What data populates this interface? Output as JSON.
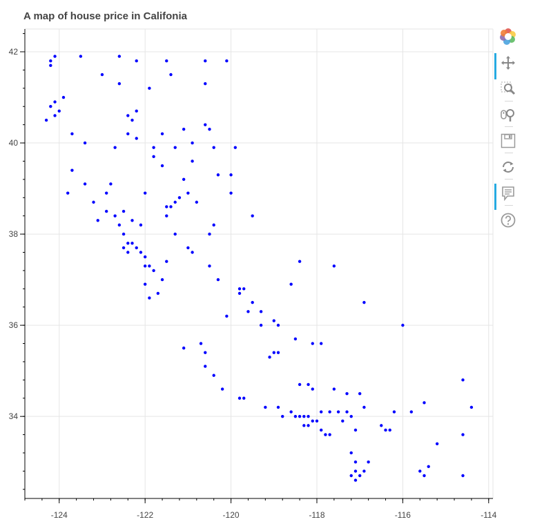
{
  "chart_data": {
    "type": "scatter",
    "title": "A map of house price in Califonia",
    "xlabel": "",
    "ylabel": "",
    "xlim": [
      -124.8,
      -113.9
    ],
    "ylim": [
      32.2,
      42.5
    ],
    "x_ticks": [
      -124,
      -122,
      -120,
      -118,
      -116,
      -114
    ],
    "x_tick_labels": [
      "-124",
      "-122",
      "-120",
      "-118",
      "-116",
      "-114"
    ],
    "y_ticks": [
      34,
      36,
      38,
      40,
      42
    ],
    "y_tick_labels": [
      "34",
      "36",
      "38",
      "40",
      "42"
    ],
    "grid": true,
    "legend": "none",
    "marker_color": "#0000ff",
    "series": [
      {
        "values_xy": [
          [
            -124.2,
            41.8
          ],
          [
            -124.1,
            41.9
          ],
          [
            -124.2,
            41.7
          ],
          [
            -123.5,
            41.9
          ],
          [
            -122.6,
            41.9
          ],
          [
            -122.2,
            41.8
          ],
          [
            -121.5,
            41.8
          ],
          [
            -120.6,
            41.8
          ],
          [
            -120.1,
            41.8
          ],
          [
            -124.2,
            40.8
          ],
          [
            -124.1,
            40.9
          ],
          [
            -124.1,
            40.6
          ],
          [
            -124.0,
            40.7
          ],
          [
            -123.9,
            41.0
          ],
          [
            -124.3,
            40.5
          ],
          [
            -123.7,
            40.2
          ],
          [
            -123.4,
            40.0
          ],
          [
            -122.4,
            40.6
          ],
          [
            -122.3,
            40.5
          ],
          [
            -122.4,
            40.2
          ],
          [
            -122.2,
            40.1
          ],
          [
            -121.8,
            39.9
          ],
          [
            -121.6,
            40.2
          ],
          [
            -121.1,
            40.3
          ],
          [
            -120.9,
            40.0
          ],
          [
            -120.6,
            40.4
          ],
          [
            -120.4,
            39.9
          ],
          [
            -120.3,
            39.3
          ],
          [
            -120.0,
            39.3
          ],
          [
            -120.0,
            38.9
          ],
          [
            -123.7,
            39.4
          ],
          [
            -123.8,
            38.9
          ],
          [
            -123.4,
            39.1
          ],
          [
            -122.8,
            39.1
          ],
          [
            -122.5,
            38.5
          ],
          [
            -122.7,
            38.4
          ],
          [
            -122.9,
            38.5
          ],
          [
            -122.3,
            38.3
          ],
          [
            -122.1,
            38.2
          ],
          [
            -122.4,
            37.8
          ],
          [
            -122.3,
            37.8
          ],
          [
            -122.2,
            37.7
          ],
          [
            -122.1,
            37.6
          ],
          [
            -122.0,
            37.5
          ],
          [
            -122.4,
            37.6
          ],
          [
            -122.5,
            37.7
          ],
          [
            -122.0,
            37.3
          ],
          [
            -121.9,
            37.3
          ],
          [
            -121.8,
            37.2
          ],
          [
            -122.0,
            36.9
          ],
          [
            -121.9,
            36.6
          ],
          [
            -121.7,
            36.7
          ],
          [
            -121.5,
            38.6
          ],
          [
            -121.4,
            38.6
          ],
          [
            -121.3,
            38.7
          ],
          [
            -121.5,
            38.4
          ],
          [
            -121.2,
            38.8
          ],
          [
            -121.0,
            38.9
          ],
          [
            -121.3,
            38.0
          ],
          [
            -121.0,
            37.7
          ],
          [
            -120.9,
            37.6
          ],
          [
            -120.5,
            37.3
          ],
          [
            -120.3,
            37.0
          ],
          [
            -119.8,
            36.8
          ],
          [
            -119.7,
            36.8
          ],
          [
            -119.8,
            36.7
          ],
          [
            -119.5,
            36.5
          ],
          [
            -119.3,
            36.3
          ],
          [
            -119.0,
            36.1
          ],
          [
            -119.3,
            36.0
          ],
          [
            -119.0,
            35.4
          ],
          [
            -119.1,
            35.3
          ],
          [
            -118.9,
            35.4
          ],
          [
            -120.6,
            35.4
          ],
          [
            -120.6,
            35.1
          ],
          [
            -120.4,
            34.9
          ],
          [
            -120.2,
            34.6
          ],
          [
            -119.7,
            34.4
          ],
          [
            -119.8,
            34.4
          ],
          [
            -119.2,
            34.2
          ],
          [
            -118.9,
            34.2
          ],
          [
            -118.8,
            34.0
          ],
          [
            -118.6,
            34.1
          ],
          [
            -118.5,
            34.0
          ],
          [
            -118.4,
            34.0
          ],
          [
            -118.3,
            34.0
          ],
          [
            -118.2,
            34.0
          ],
          [
            -118.1,
            33.9
          ],
          [
            -118.0,
            33.9
          ],
          [
            -118.2,
            33.8
          ],
          [
            -118.3,
            33.8
          ],
          [
            -117.9,
            33.7
          ],
          [
            -117.8,
            33.6
          ],
          [
            -117.7,
            33.6
          ],
          [
            -117.9,
            34.1
          ],
          [
            -117.7,
            34.1
          ],
          [
            -117.5,
            34.1
          ],
          [
            -117.3,
            34.1
          ],
          [
            -117.2,
            34.0
          ],
          [
            -117.4,
            33.9
          ],
          [
            -117.1,
            33.7
          ],
          [
            -117.2,
            33.2
          ],
          [
            -117.1,
            33.0
          ],
          [
            -117.1,
            32.8
          ],
          [
            -117.0,
            32.7
          ],
          [
            -117.1,
            32.6
          ],
          [
            -117.2,
            32.7
          ],
          [
            -116.9,
            32.8
          ],
          [
            -116.8,
            33.0
          ],
          [
            -116.5,
            33.8
          ],
          [
            -116.4,
            33.7
          ],
          [
            -116.3,
            33.7
          ],
          [
            -116.2,
            34.1
          ],
          [
            -117.0,
            34.5
          ],
          [
            -117.3,
            34.5
          ],
          [
            -117.6,
            34.6
          ],
          [
            -118.1,
            34.6
          ],
          [
            -118.2,
            34.7
          ],
          [
            -118.4,
            34.7
          ],
          [
            -116.0,
            36.0
          ],
          [
            -116.9,
            36.5
          ],
          [
            -117.6,
            37.3
          ],
          [
            -118.4,
            37.4
          ],
          [
            -118.6,
            36.9
          ],
          [
            -119.9,
            39.9
          ],
          [
            -120.5,
            38.0
          ],
          [
            -120.4,
            38.2
          ],
          [
            -119.5,
            38.4
          ],
          [
            -115.6,
            32.8
          ],
          [
            -115.5,
            32.7
          ],
          [
            -115.4,
            32.9
          ],
          [
            -115.2,
            33.4
          ],
          [
            -114.6,
            34.8
          ],
          [
            -114.6,
            33.6
          ],
          [
            -114.4,
            34.2
          ],
          [
            -114.6,
            32.7
          ],
          [
            -115.5,
            34.3
          ],
          [
            -115.8,
            34.1
          ],
          [
            -116.9,
            34.2
          ],
          [
            -117.9,
            35.6
          ],
          [
            -118.1,
            35.6
          ],
          [
            -118.5,
            35.7
          ],
          [
            -118.9,
            36.0
          ],
          [
            -119.6,
            36.3
          ],
          [
            -120.1,
            36.2
          ],
          [
            -120.7,
            35.6
          ],
          [
            -121.1,
            35.5
          ],
          [
            -121.5,
            37.4
          ],
          [
            -121.6,
            37.0
          ],
          [
            -122.5,
            38.0
          ],
          [
            -122.6,
            38.2
          ],
          [
            -123.1,
            38.3
          ],
          [
            -123.2,
            38.7
          ],
          [
            -122.9,
            38.9
          ],
          [
            -122.0,
            38.9
          ],
          [
            -121.8,
            39.7
          ],
          [
            -121.6,
            39.5
          ],
          [
            -121.1,
            39.2
          ],
          [
            -120.8,
            38.7
          ],
          [
            -122.7,
            39.9
          ],
          [
            -122.2,
            40.7
          ],
          [
            -122.6,
            41.3
          ],
          [
            -123.0,
            41.5
          ],
          [
            -121.9,
            41.2
          ],
          [
            -121.4,
            41.5
          ],
          [
            -120.6,
            41.3
          ],
          [
            -120.5,
            40.3
          ],
          [
            -121.3,
            39.9
          ],
          [
            -120.9,
            39.6
          ]
        ]
      }
    ]
  }
}
